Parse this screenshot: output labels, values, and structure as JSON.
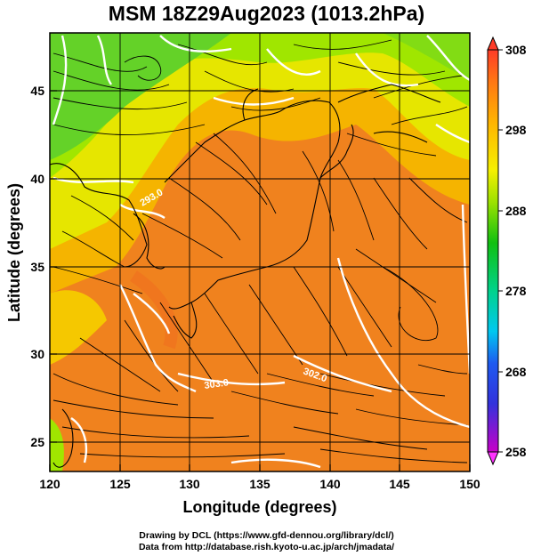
{
  "title": "MSM 18Z29Aug2023 (1013.2hPa)",
  "map": {
    "xlabel": "Longitude (degrees)",
    "ylabel": "Latitude  (degrees)",
    "lon_range": [
      120,
      150
    ],
    "lat_range": [
      23,
      48
    ],
    "lon_ticks": [
      "120",
      "125",
      "130",
      "135",
      "140",
      "145",
      "150"
    ],
    "lat_ticks": [
      "25",
      "30",
      "35",
      "40",
      "45"
    ],
    "contour_labels": [
      "303.0",
      "302.0",
      "293.0"
    ],
    "colorbar": {
      "ticks": [
        "308",
        "298",
        "288",
        "278",
        "268",
        "258"
      ],
      "range": [
        258,
        308
      ],
      "colors": [
        "#c800c8",
        "#1e1edc",
        "#00b4e6",
        "#00c8a0",
        "#00c800",
        "#a0e600",
        "#ffff00",
        "#ffc800",
        "#ff8c00",
        "#ff3c1e"
      ]
    }
  },
  "credits": {
    "line1": "Drawing by DCL (https://www.gfd-dennou.org/library/dcl/)",
    "line2": "Data from http://database.rish.kyoto-u.ac.jp/arch/jmadata/"
  }
}
